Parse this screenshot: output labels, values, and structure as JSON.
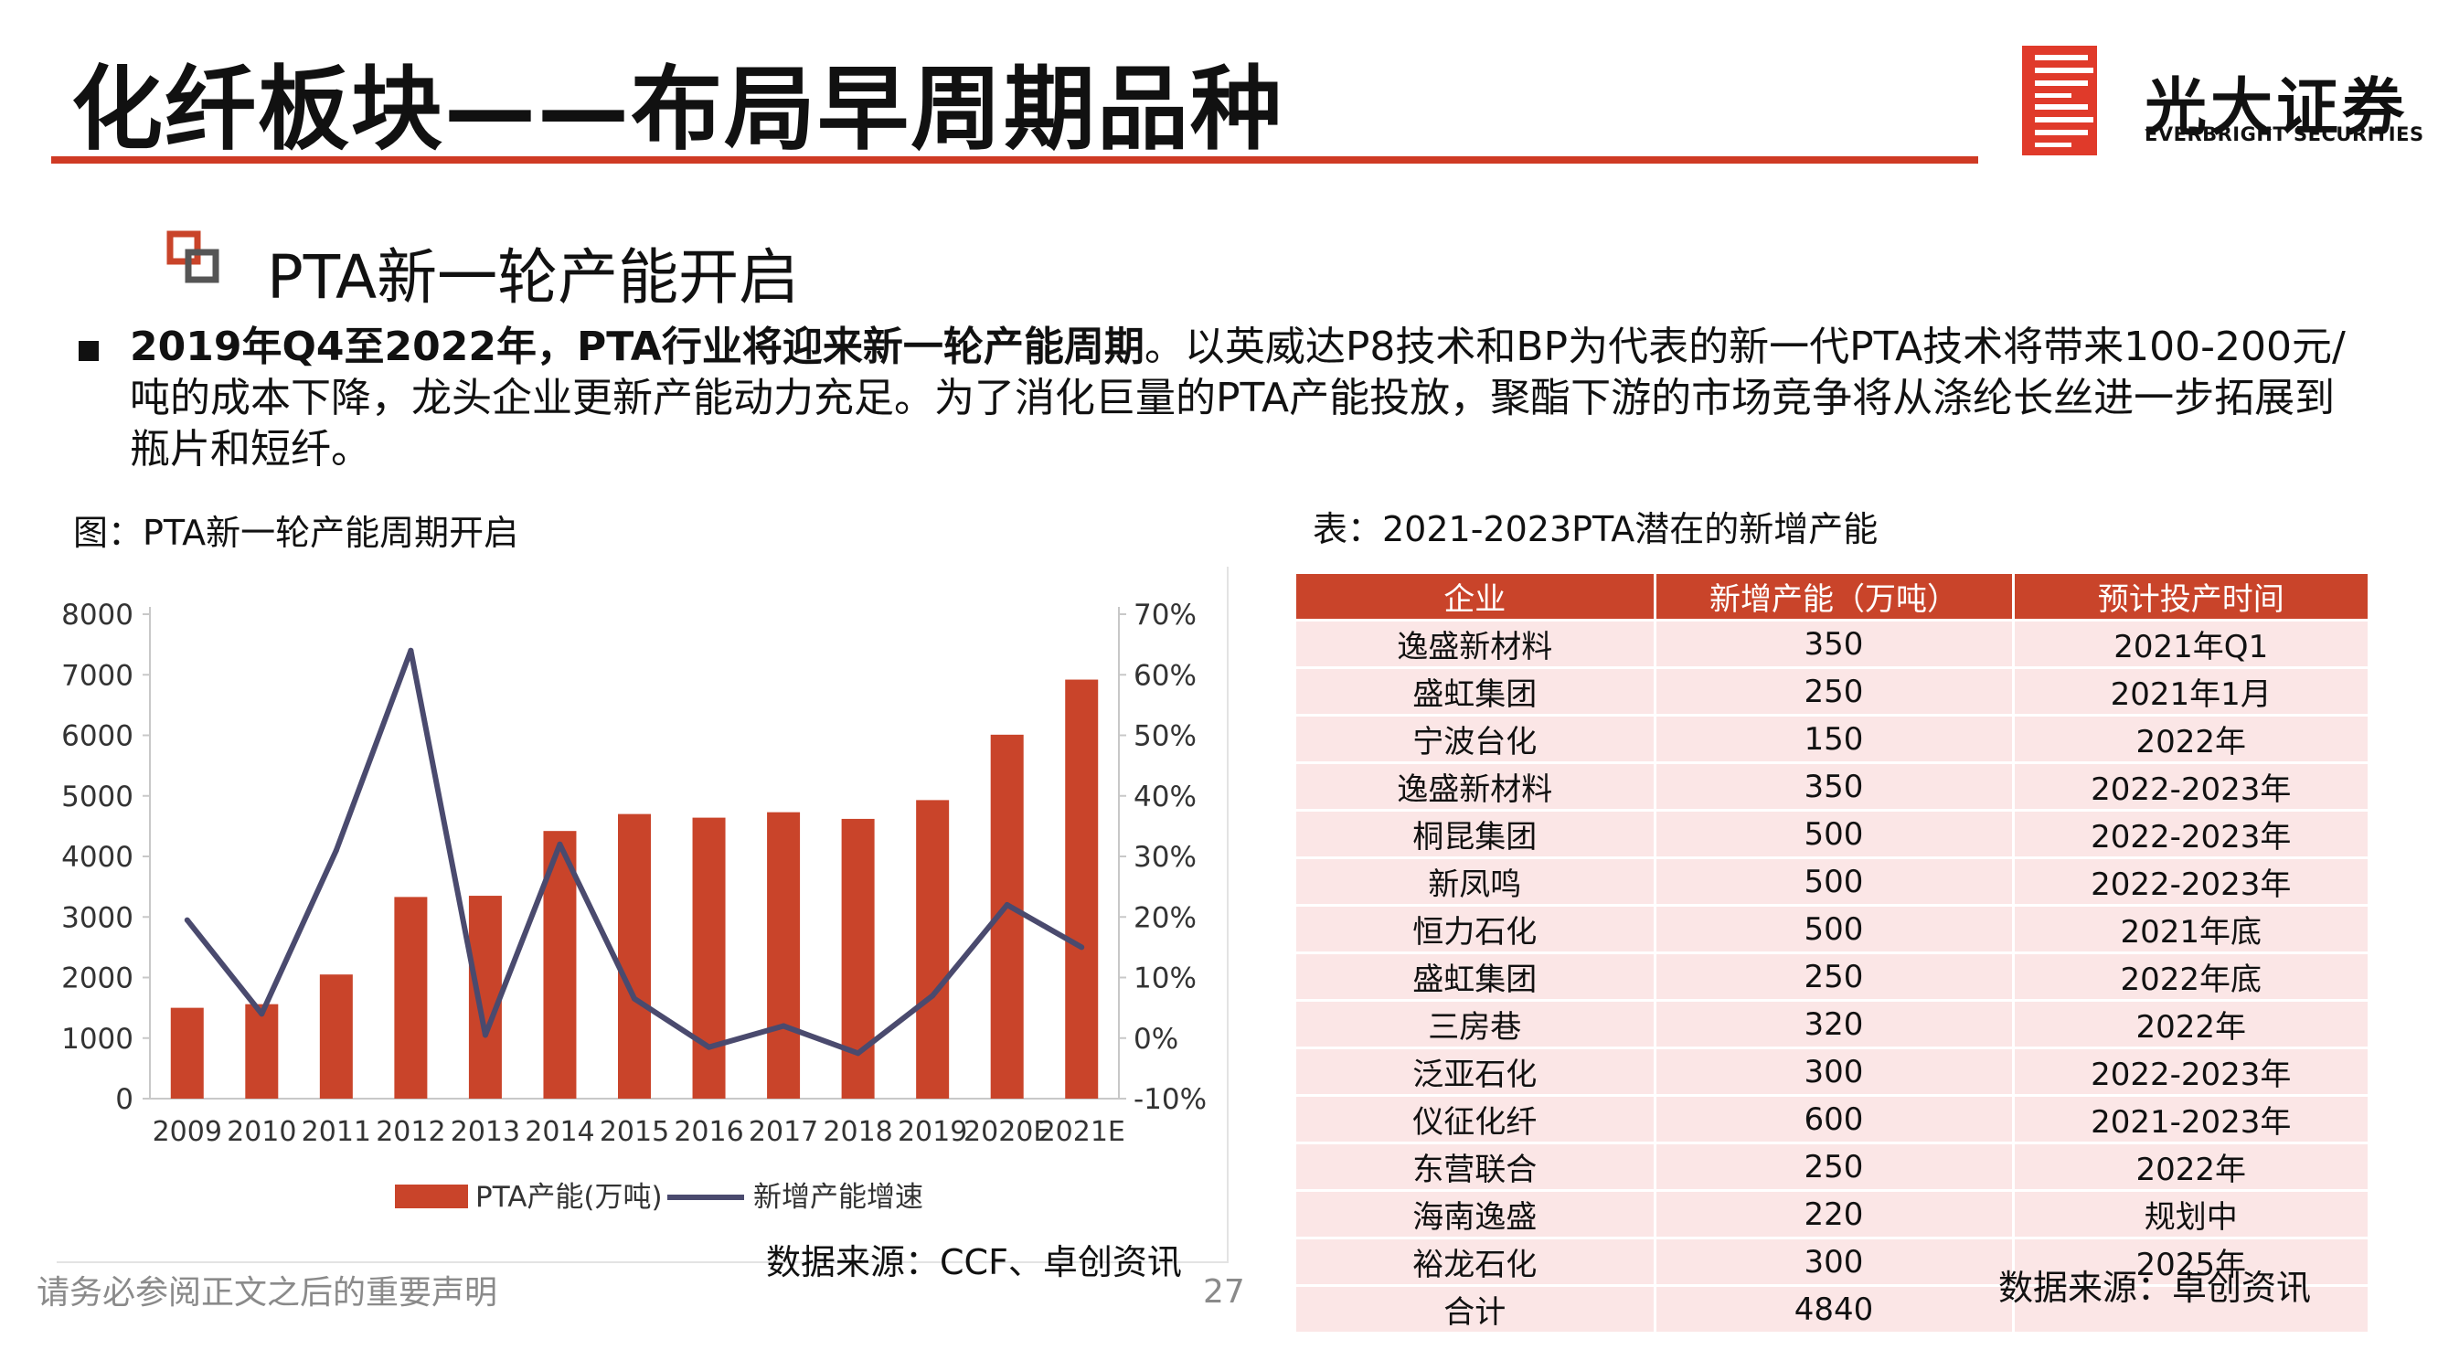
{
  "header": {
    "title": "化纤板块——布局早周期品种",
    "logo_cn": "光大证券",
    "logo_en": "EVERBRIGHT SECURITIES"
  },
  "section": {
    "subheading": "PTA新一轮产能开启",
    "para_bold": "2019年Q4至2022年，PTA行业将迎来新一轮产能周期",
    "para_rest": "。以英威达P8技术和BP为代表的新一代PTA技术将带来100-200元/吨的成本下降，龙头企业更新产能动力充足。为了消化巨量的PTA产能投放，聚酯下游的市场竞争将从涤纶长丝进一步拓展到瓶片和短纤。"
  },
  "figure": {
    "caption": "图：PTA新一轮产能周期开启",
    "source": "数据来源：CCF、卓创资讯"
  },
  "table_block": {
    "caption": "表：2021-2023PTA潜在的新增产能",
    "source": "数据来源：卓创资讯",
    "headers": [
      "企业",
      "新增产能（万吨）",
      "预计投产时间"
    ],
    "rows": [
      [
        "逸盛新材料",
        "350",
        "2021年Q1"
      ],
      [
        "盛虹集团",
        "250",
        "2021年1月"
      ],
      [
        "宁波台化",
        "150",
        "2022年"
      ],
      [
        "逸盛新材料",
        "350",
        "2022-2023年"
      ],
      [
        "桐昆集团",
        "500",
        "2022-2023年"
      ],
      [
        "新凤鸣",
        "500",
        "2022-2023年"
      ],
      [
        "恒力石化",
        "500",
        "2021年底"
      ],
      [
        "盛虹集团",
        "250",
        "2022年底"
      ],
      [
        "三房巷",
        "320",
        "2022年"
      ],
      [
        "泛亚石化",
        "300",
        "2022-2023年"
      ],
      [
        "仪征化纤",
        "600",
        "2021-2023年"
      ],
      [
        "东营联合",
        "250",
        "2022年"
      ],
      [
        "海南逸盛",
        "220",
        "规划中"
      ],
      [
        "裕龙石化",
        "300",
        "2025年"
      ],
      [
        "合计",
        "4840",
        ""
      ]
    ]
  },
  "footer": {
    "disclaimer": "请务必参阅正文之后的重要声明",
    "page_number": "27"
  },
  "chart_data": {
    "type": "bar",
    "title": "",
    "categories": [
      "2009",
      "2010",
      "2011",
      "2012",
      "2013",
      "2014",
      "2015",
      "2016",
      "2017",
      "2018",
      "2019",
      "2020E",
      "2021E"
    ],
    "series": [
      {
        "name": "PTA产能(万吨)",
        "type": "bar",
        "axis": "left",
        "color": "#c9442a",
        "values": [
          1500,
          1560,
          2050,
          3330,
          3350,
          4420,
          4700,
          4640,
          4730,
          4620,
          4930,
          6010,
          6920
        ]
      },
      {
        "name": "新增产能增速",
        "type": "line",
        "axis": "right",
        "color": "#4a4a6e",
        "values": [
          19.5,
          4.0,
          31.0,
          64.0,
          0.5,
          32.0,
          6.5,
          -1.5,
          2.0,
          -2.5,
          7.0,
          22.0,
          15.0
        ]
      }
    ],
    "y_left": {
      "min": 0,
      "max": 8000,
      "ticks": [
        0,
        1000,
        2000,
        3000,
        4000,
        5000,
        6000,
        7000,
        8000
      ]
    },
    "y_right": {
      "min": -10,
      "max": 70,
      "ticks": [
        "-10%",
        "0%",
        "10%",
        "20%",
        "30%",
        "40%",
        "50%",
        "60%",
        "70%"
      ]
    },
    "legend_position": "bottom"
  }
}
